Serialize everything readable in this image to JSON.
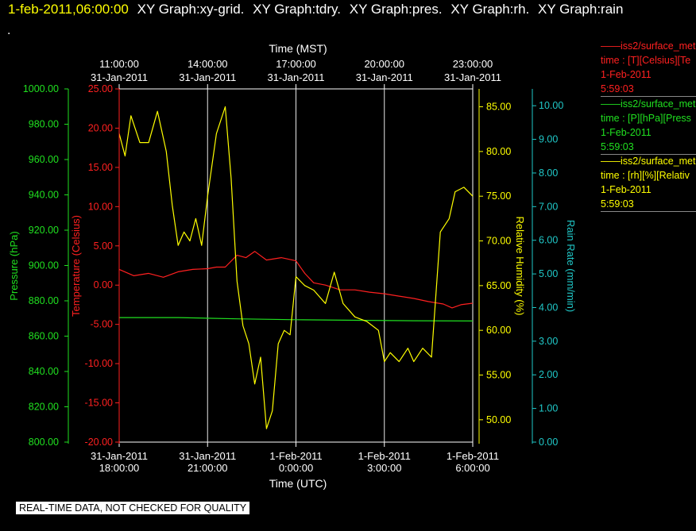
{
  "header": {
    "timestamp": "1-feb-2011,06:00:00",
    "graph_titles": [
      "XY Graph:xy-grid.",
      "XY Graph:tdry.",
      "XY Graph:pres.",
      "XY Graph:rh.",
      "XY Graph:rain"
    ]
  },
  "dot": ".",
  "legend": [
    {
      "line1": "——iss2/surface_met",
      "line2": "time : [T][Celsius][Te",
      "line3": "1-Feb-2011",
      "line4": "5:59:03",
      "color": "#ff2020"
    },
    {
      "line1": "——iss2/surface_met",
      "line2": "time : [P][hPa][Press",
      "line3": "1-Feb-2011",
      "line4": "5:59:03",
      "color": "#20e020"
    },
    {
      "line1": "——iss2/surface_met",
      "line2": "time : [rh][%][Relativ",
      "line3": "1-Feb-2011",
      "line4": "5:59:03",
      "color": "#ffff00"
    }
  ],
  "notice": "REAL-TIME DATA, NOT CHECKED FOR QUALITY",
  "chart_data": {
    "type": "line",
    "top_axis": {
      "label": "Time (MST)",
      "ticks": [
        {
          "time": "11:00:00",
          "date": "31-Jan-2011"
        },
        {
          "time": "14:00:00",
          "date": "31-Jan-2011"
        },
        {
          "time": "17:00:00",
          "date": "31-Jan-2011"
        },
        {
          "time": "20:00:00",
          "date": "31-Jan-2011"
        },
        {
          "time": "23:00:00",
          "date": "31-Jan-2011"
        }
      ]
    },
    "bottom_axis": {
      "label": "Time (UTC)",
      "ticks": [
        {
          "date": "31-Jan-2011",
          "time": "18:00:00"
        },
        {
          "date": "31-Jan-2011",
          "time": "21:00:00"
        },
        {
          "date": "1-Feb-2011",
          "time": "0:00:00"
        },
        {
          "date": "1-Feb-2011",
          "time": "3:00:00"
        },
        {
          "date": "1-Feb-2011",
          "time": "6:00:00"
        }
      ],
      "range_hours_utc": [
        18,
        30
      ]
    },
    "axes": {
      "pressure": {
        "label": "Pressure (hPa)",
        "min": 800,
        "max": 1000,
        "ticks": [
          "800.00",
          "820.00",
          "840.00",
          "860.00",
          "880.00",
          "900.00",
          "920.00",
          "940.00",
          "960.00",
          "980.00",
          "1000.00"
        ],
        "color": "#20e020"
      },
      "temperature": {
        "label": "Temperature (Celsius)",
        "min": -20,
        "max": 25,
        "ticks": [
          "-20.00",
          "-15.00",
          "-10.00",
          "-5.00",
          "0.00",
          "5.00",
          "10.00",
          "15.00",
          "20.00",
          "25.00"
        ],
        "color": "#ff2020"
      },
      "rh": {
        "label": "Relative Humidity (%)",
        "min": 47.5,
        "max": 87,
        "ticks": [
          "50.00",
          "55.00",
          "60.00",
          "65.00",
          "70.00",
          "75.00",
          "80.00",
          "85.00"
        ],
        "color": "#ffff00"
      },
      "rain": {
        "label": "Rain Rate (mm/min)",
        "min": 0,
        "max": 10.5,
        "ticks": [
          "0.00",
          "1.00",
          "2.00",
          "3.00",
          "4.00",
          "5.00",
          "6.00",
          "7.00",
          "8.00",
          "9.00",
          "10.00"
        ],
        "color": "#20c8c8"
      }
    },
    "grid": true,
    "series": [
      {
        "key": "temperature",
        "color": "#ff2020",
        "x": [
          18.0,
          18.5,
          19.0,
          19.5,
          20.0,
          20.5,
          21.0,
          21.3,
          21.6,
          22.0,
          22.3,
          22.6,
          23.0,
          23.5,
          24.0,
          24.3,
          24.6,
          25.0,
          25.5,
          26.0,
          26.5,
          27.0,
          27.5,
          28.0,
          28.5,
          29.0,
          29.3,
          29.6,
          30.0
        ],
        "y": [
          2.0,
          1.2,
          1.5,
          1.0,
          1.7,
          2.0,
          2.1,
          2.3,
          2.3,
          3.8,
          3.5,
          4.3,
          3.2,
          3.5,
          3.1,
          1.5,
          0.3,
          0.0,
          -0.6,
          -0.6,
          -0.9,
          -1.1,
          -1.4,
          -1.7,
          -2.1,
          -2.4,
          -2.9,
          -2.5,
          -2.3
        ]
      },
      {
        "key": "pressure",
        "color": "#20e020",
        "x": [
          18.0,
          20.0,
          22.0,
          24.0,
          26.0,
          28.0,
          30.0
        ],
        "y": [
          870.5,
          870.5,
          869.8,
          869.3,
          869.0,
          868.7,
          868.6
        ]
      },
      {
        "key": "rh",
        "color": "#ffff00",
        "x": [
          18.0,
          18.2,
          18.4,
          18.7,
          19.0,
          19.3,
          19.6,
          19.8,
          20.0,
          20.2,
          20.4,
          20.6,
          20.8,
          21.0,
          21.3,
          21.6,
          21.8,
          22.0,
          22.2,
          22.4,
          22.6,
          22.8,
          23.0,
          23.2,
          23.4,
          23.6,
          23.8,
          24.0,
          24.3,
          24.6,
          25.0,
          25.3,
          25.6,
          26.0,
          26.4,
          26.8,
          27.0,
          27.2,
          27.5,
          27.8,
          28.0,
          28.3,
          28.6,
          28.9,
          29.2,
          29.4,
          29.7,
          30.0
        ],
        "y": [
          82.0,
          79.5,
          84.0,
          81.0,
          81.0,
          84.5,
          80.0,
          74.0,
          69.5,
          71.0,
          70.0,
          72.5,
          69.5,
          75.0,
          82.0,
          85.0,
          77.0,
          65.5,
          60.5,
          58.5,
          54.0,
          57.0,
          49.0,
          51.0,
          58.5,
          60.0,
          59.5,
          66.0,
          65.0,
          64.5,
          63.0,
          66.5,
          63.0,
          61.5,
          61.0,
          60.0,
          56.5,
          57.5,
          56.5,
          58.0,
          56.5,
          58.0,
          57.0,
          71.0,
          72.5,
          75.5,
          76.0,
          75.0
        ]
      }
    ]
  }
}
